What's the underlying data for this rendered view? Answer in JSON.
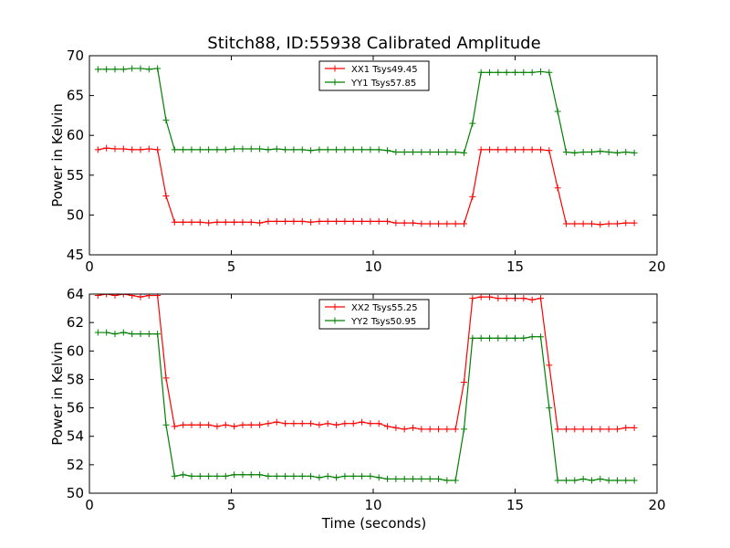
{
  "chart_data": [
    {
      "type": "line",
      "title": "Stitch88, ID:55938 Calibrated Amplitude",
      "xlabel": "",
      "ylabel": "Power in Kelvin",
      "xlim": [
        0,
        20
      ],
      "ylim": [
        45,
        70
      ],
      "xticks": [
        0,
        5,
        10,
        15,
        20
      ],
      "yticks": [
        45,
        50,
        55,
        60,
        65,
        70
      ],
      "grid": false,
      "legend_position": "top-center",
      "x": [
        0.3,
        0.6,
        0.9,
        1.2,
        1.5,
        1.8,
        2.1,
        2.4,
        2.7,
        3.0,
        3.3,
        3.6,
        3.9,
        4.2,
        4.5,
        4.8,
        5.1,
        5.4,
        5.7,
        6.0,
        6.3,
        6.6,
        6.9,
        7.2,
        7.5,
        7.8,
        8.1,
        8.4,
        8.7,
        9.0,
        9.3,
        9.6,
        9.9,
        10.2,
        10.5,
        10.8,
        11.1,
        11.4,
        11.7,
        12.0,
        12.3,
        12.6,
        12.9,
        13.2,
        13.5,
        13.8,
        14.1,
        14.4,
        14.7,
        15.0,
        15.3,
        15.6,
        15.9,
        16.2,
        16.5,
        16.8,
        17.1,
        17.4,
        17.7,
        18.0,
        18.3,
        18.6,
        18.9,
        19.2
      ],
      "series": [
        {
          "name": "XX1 Tsys49.45",
          "color": "#ff0000",
          "values": [
            58.2,
            58.4,
            58.3,
            58.3,
            58.2,
            58.2,
            58.3,
            58.2,
            52.4,
            49.1,
            49.1,
            49.1,
            49.1,
            49.0,
            49.1,
            49.1,
            49.1,
            49.1,
            49.1,
            49.0,
            49.2,
            49.2,
            49.2,
            49.2,
            49.2,
            49.1,
            49.2,
            49.2,
            49.2,
            49.2,
            49.2,
            49.2,
            49.2,
            49.2,
            49.2,
            49.0,
            49.0,
            49.0,
            48.9,
            48.9,
            48.9,
            48.9,
            48.9,
            48.9,
            52.3,
            58.2,
            58.2,
            58.2,
            58.2,
            58.2,
            58.2,
            58.2,
            58.2,
            58.1,
            53.4,
            48.9,
            48.9,
            48.9,
            48.9,
            48.8,
            48.9,
            48.9,
            49.0,
            49.0
          ]
        },
        {
          "name": "YY1 Tsys57.85",
          "color": "#008000",
          "values": [
            68.3,
            68.3,
            68.3,
            68.3,
            68.4,
            68.4,
            68.3,
            68.4,
            61.9,
            58.2,
            58.2,
            58.2,
            58.2,
            58.2,
            58.2,
            58.2,
            58.3,
            58.3,
            58.3,
            58.3,
            58.2,
            58.3,
            58.2,
            58.2,
            58.2,
            58.1,
            58.2,
            58.2,
            58.2,
            58.2,
            58.2,
            58.2,
            58.2,
            58.2,
            58.1,
            57.9,
            57.9,
            57.9,
            57.9,
            57.9,
            57.9,
            57.9,
            57.9,
            57.8,
            61.5,
            67.9,
            67.9,
            67.9,
            67.9,
            67.9,
            67.9,
            67.9,
            68.0,
            67.9,
            63.0,
            57.9,
            57.8,
            57.9,
            57.9,
            58.0,
            57.9,
            57.8,
            57.9,
            57.8
          ]
        }
      ]
    },
    {
      "type": "line",
      "title": "",
      "xlabel": "Time (seconds)",
      "ylabel": "Power in Kelvin",
      "xlim": [
        0,
        20
      ],
      "ylim": [
        50,
        64
      ],
      "xticks": [
        0,
        5,
        10,
        15,
        20
      ],
      "yticks": [
        50,
        52,
        54,
        56,
        58,
        60,
        62,
        64
      ],
      "grid": false,
      "legend_position": "top-center",
      "x": [
        0.3,
        0.6,
        0.9,
        1.2,
        1.5,
        1.8,
        2.1,
        2.4,
        2.7,
        3.0,
        3.3,
        3.6,
        3.9,
        4.2,
        4.5,
        4.8,
        5.1,
        5.4,
        5.7,
        6.0,
        6.3,
        6.6,
        6.9,
        7.2,
        7.5,
        7.8,
        8.1,
        8.4,
        8.7,
        9.0,
        9.3,
        9.6,
        9.9,
        10.2,
        10.5,
        10.8,
        11.1,
        11.4,
        11.7,
        12.0,
        12.3,
        12.6,
        12.9,
        13.2,
        13.5,
        13.8,
        14.1,
        14.4,
        14.7,
        15.0,
        15.3,
        15.6,
        15.9,
        16.2,
        16.5,
        16.8,
        17.1,
        17.4,
        17.7,
        18.0,
        18.3,
        18.6,
        18.9,
        19.2
      ],
      "series": [
        {
          "name": "XX2 Tsys55.25",
          "color": "#ff0000",
          "values": [
            63.9,
            64.0,
            63.9,
            64.0,
            63.9,
            63.8,
            63.9,
            63.9,
            58.1,
            54.7,
            54.8,
            54.8,
            54.8,
            54.8,
            54.7,
            54.8,
            54.7,
            54.8,
            54.8,
            54.8,
            54.9,
            55.0,
            54.9,
            54.9,
            54.9,
            54.9,
            54.8,
            54.9,
            54.8,
            54.9,
            54.9,
            55.0,
            54.9,
            54.9,
            54.7,
            54.6,
            54.5,
            54.6,
            54.5,
            54.5,
            54.5,
            54.5,
            54.5,
            57.8,
            63.7,
            63.8,
            63.8,
            63.7,
            63.7,
            63.7,
            63.7,
            63.6,
            63.7,
            59.0,
            54.5,
            54.5,
            54.5,
            54.5,
            54.5,
            54.5,
            54.5,
            54.5,
            54.6,
            54.6
          ]
        },
        {
          "name": "YY2 Tsys50.95",
          "color": "#008000",
          "values": [
            61.3,
            61.3,
            61.2,
            61.3,
            61.2,
            61.2,
            61.2,
            61.2,
            54.8,
            51.2,
            51.3,
            51.2,
            51.2,
            51.2,
            51.2,
            51.2,
            51.3,
            51.3,
            51.3,
            51.3,
            51.2,
            51.2,
            51.2,
            51.2,
            51.2,
            51.2,
            51.1,
            51.2,
            51.1,
            51.2,
            51.2,
            51.2,
            51.2,
            51.1,
            51.0,
            51.0,
            51.0,
            51.0,
            51.0,
            51.0,
            51.0,
            50.9,
            50.9,
            54.5,
            60.9,
            60.9,
            60.9,
            60.9,
            60.9,
            60.9,
            60.9,
            61.0,
            61.0,
            56.0,
            50.9,
            50.9,
            50.9,
            51.0,
            50.9,
            51.0,
            50.9,
            50.9,
            50.9,
            50.9
          ]
        }
      ]
    }
  ]
}
